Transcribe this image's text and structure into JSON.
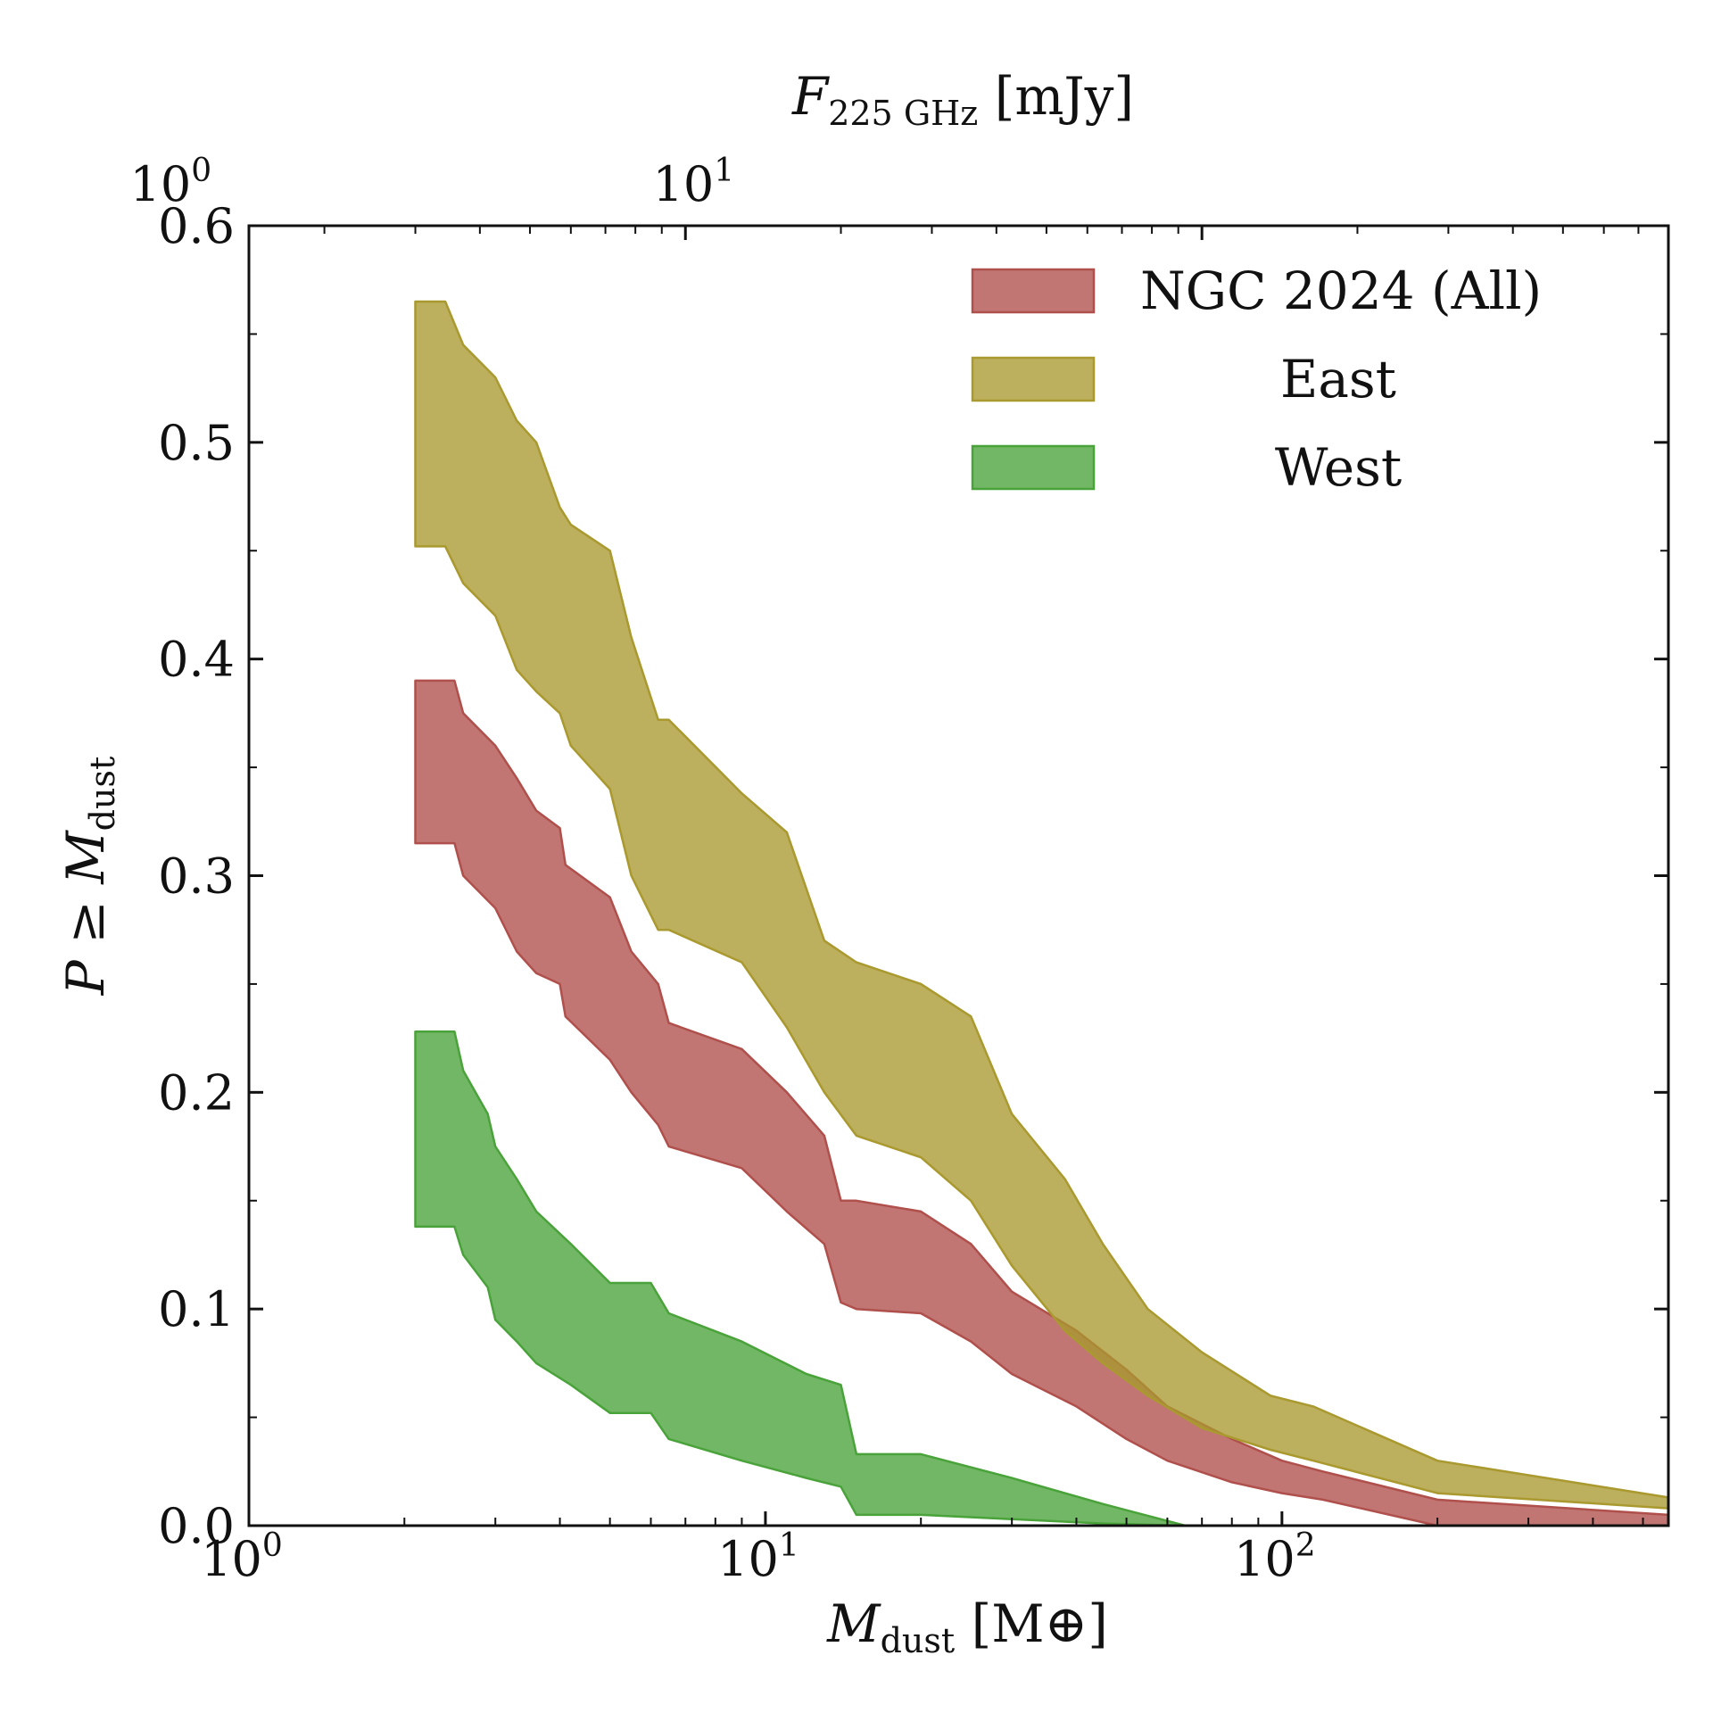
{
  "chart_data": {
    "type": "area",
    "x_scale": "log",
    "xlim": [
      1,
      560
    ],
    "ylim": [
      0,
      0.6
    ],
    "y_ticks": [
      "0.0",
      "0.1",
      "0.2",
      "0.3",
      "0.4",
      "0.5",
      "0.6"
    ],
    "x_ticks": [
      {
        "value": 1,
        "base": "10",
        "exp": "0"
      },
      {
        "value": 10,
        "base": "10",
        "exp": "1"
      },
      {
        "value": 100,
        "base": "10",
        "exp": "2"
      }
    ],
    "top_axis": {
      "label_main": "F",
      "label_sub": "225 GHz",
      "label_units": "[mJy]",
      "ticks": [
        {
          "at_x": 0.7,
          "base": "10",
          "exp": "0"
        },
        {
          "at_x": 7.2,
          "base": "10",
          "exp": "1"
        }
      ]
    },
    "xlabel": {
      "main": "M",
      "sub": "dust",
      "units": "[M⊕]"
    },
    "ylabel": {
      "prefix": "P ≥ ",
      "main": "M",
      "sub": "dust"
    },
    "legend_position": "top-right",
    "series": [
      {
        "name": "NGC 2024 (All)",
        "color": "#b0504c",
        "x": [
          2.1,
          2.5,
          2.6,
          3.0,
          3.3,
          3.6,
          4.0,
          4.1,
          5.0,
          5.5,
          6.2,
          6.5,
          9.0,
          11.0,
          13.0,
          14.0,
          15.0,
          20.0,
          25.0,
          30.0,
          40.0,
          50.0,
          60.0,
          80.0,
          100.0,
          120.0,
          200.0,
          560.0
        ],
        "upper": [
          0.39,
          0.39,
          0.375,
          0.36,
          0.345,
          0.33,
          0.322,
          0.305,
          0.29,
          0.265,
          0.25,
          0.232,
          0.22,
          0.2,
          0.18,
          0.15,
          0.15,
          0.145,
          0.13,
          0.108,
          0.09,
          0.072,
          0.055,
          0.04,
          0.03,
          0.025,
          0.012,
          0.005
        ],
        "lower": [
          0.315,
          0.315,
          0.3,
          0.285,
          0.265,
          0.255,
          0.25,
          0.235,
          0.215,
          0.2,
          0.185,
          0.175,
          0.165,
          0.145,
          0.13,
          0.103,
          0.1,
          0.098,
          0.085,
          0.07,
          0.055,
          0.04,
          0.03,
          0.02,
          0.015,
          0.012,
          0.0,
          0.0
        ]
      },
      {
        "name": "East",
        "color": "#a9992f",
        "x": [
          2.1,
          2.4,
          2.6,
          3.0,
          3.3,
          3.6,
          4.0,
          4.2,
          5.0,
          5.5,
          6.2,
          6.5,
          9.0,
          11.0,
          13.0,
          15.0,
          20.0,
          25.0,
          30.0,
          38.0,
          45.0,
          55.0,
          70.0,
          95.0,
          115.0,
          200.0,
          560.0
        ],
        "upper": [
          0.565,
          0.565,
          0.545,
          0.53,
          0.51,
          0.5,
          0.47,
          0.462,
          0.45,
          0.41,
          0.372,
          0.372,
          0.338,
          0.32,
          0.27,
          0.26,
          0.25,
          0.235,
          0.19,
          0.16,
          0.13,
          0.1,
          0.08,
          0.06,
          0.055,
          0.03,
          0.013
        ],
        "lower": [
          0.452,
          0.452,
          0.435,
          0.42,
          0.395,
          0.385,
          0.375,
          0.36,
          0.34,
          0.3,
          0.275,
          0.275,
          0.26,
          0.23,
          0.2,
          0.18,
          0.17,
          0.15,
          0.12,
          0.09,
          0.075,
          0.06,
          0.045,
          0.035,
          0.03,
          0.015,
          0.008
        ]
      },
      {
        "name": "West",
        "color": "#4aa33a",
        "x": [
          2.1,
          2.5,
          2.6,
          2.9,
          3.0,
          3.3,
          3.6,
          4.2,
          5.0,
          6.0,
          6.5,
          9.0,
          12.0,
          14.0,
          15.0,
          20.0,
          30.0,
          45.0,
          65.0
        ],
        "upper": [
          0.228,
          0.228,
          0.21,
          0.19,
          0.175,
          0.16,
          0.145,
          0.13,
          0.112,
          0.112,
          0.098,
          0.085,
          0.07,
          0.065,
          0.033,
          0.033,
          0.022,
          0.01,
          0.0
        ],
        "lower": [
          0.138,
          0.138,
          0.125,
          0.11,
          0.095,
          0.085,
          0.075,
          0.065,
          0.052,
          0.052,
          0.04,
          0.03,
          0.022,
          0.018,
          0.005,
          0.005,
          0.003,
          0.001,
          0.0
        ]
      }
    ]
  }
}
